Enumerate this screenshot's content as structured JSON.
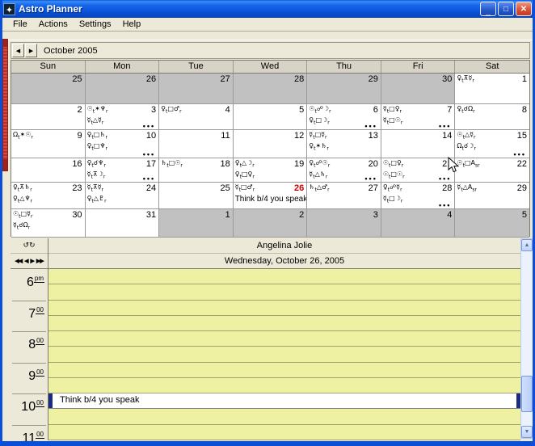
{
  "window": {
    "title": "Astro Planner",
    "icon": "✦",
    "minimize": "_",
    "maximize": "□",
    "close": "✕"
  },
  "menu": [
    "File",
    "Actions",
    "Settings",
    "Help"
  ],
  "navbar": {
    "prev": "◀",
    "next": "▶",
    "label": "October 2005"
  },
  "calendar": {
    "headers": [
      "Sun",
      "Mon",
      "Tue",
      "Wed",
      "Thu",
      "Fri",
      "Sat"
    ],
    "more_label": "•••",
    "weeks": [
      [
        {
          "day": "25",
          "dim": 1
        },
        {
          "day": "26",
          "dim": 1
        },
        {
          "day": "27",
          "dim": 1
        },
        {
          "day": "28",
          "dim": 1
        },
        {
          "day": "29",
          "dim": 1
        },
        {
          "day": "30",
          "dim": 1
        },
        {
          "day": "1",
          "lines": [
            "♀t⊼☿r"
          ]
        }
      ],
      [
        {
          "day": "2"
        },
        {
          "day": "3",
          "lines": [
            "☉t✶♆r",
            "☿t△☿r"
          ],
          "more": 1
        },
        {
          "day": "4",
          "lines": [
            "♀t□♂r"
          ]
        },
        {
          "day": "5"
        },
        {
          "day": "6",
          "lines": [
            "☉t☍☽r",
            "♀t□☽r"
          ],
          "more": 1
        },
        {
          "day": "7",
          "lines": [
            "☿t□♀r",
            "☿t□☉r"
          ],
          "more": 1
        },
        {
          "day": "8",
          "lines": [
            "♀t☌Ωr"
          ]
        }
      ],
      [
        {
          "day": "9",
          "lines": [
            "Ωt✶☉r"
          ]
        },
        {
          "day": "10",
          "lines": [
            "♀t□♄r",
            "♀t□♆r"
          ],
          "more": 1
        },
        {
          "day": "11"
        },
        {
          "day": "12"
        },
        {
          "day": "13",
          "lines": [
            "☿t□☿r",
            "♀t✶♄r"
          ]
        },
        {
          "day": "14"
        },
        {
          "day": "15",
          "lines": [
            "☉t△☿r",
            "Ωt☌☽r"
          ],
          "more": 1
        }
      ],
      [
        {
          "day": "16"
        },
        {
          "day": "17",
          "lines": [
            "♀t☌♆r",
            "☿t⊼☽r"
          ],
          "more": 1
        },
        {
          "day": "18",
          "lines": [
            "♄t□☉r"
          ]
        },
        {
          "day": "19",
          "lines": [
            "♀t△☽r",
            "♀t□♀r"
          ]
        },
        {
          "day": "20",
          "lines": [
            "♀t☍☉r",
            "☿t△♄r"
          ],
          "more": 1
        },
        {
          "day": "21",
          "lines": [
            "☉t□♀r",
            "☉t□☉r"
          ],
          "more": 1
        },
        {
          "day": "22",
          "lines": [
            "☉t□Asr"
          ]
        }
      ],
      [
        {
          "day": "23",
          "lines": [
            "♀t⊼♄r",
            "♀t△♆r"
          ]
        },
        {
          "day": "24",
          "lines": [
            "☿t⊼☿r",
            "♀t△♇r"
          ]
        },
        {
          "day": "25"
        },
        {
          "day": "26",
          "red": 1,
          "lines": [
            "☿t□♂r"
          ],
          "note": "Think b/4 you speak"
        },
        {
          "day": "27",
          "lines": [
            "♄t△♂r"
          ]
        },
        {
          "day": "28",
          "lines": [
            "♀t☍☿r",
            "☿t□☽r"
          ],
          "more": 1
        },
        {
          "day": "29",
          "lines": [
            "☿t△Asr"
          ]
        }
      ],
      [
        {
          "day": "30",
          "lines": [
            "☉t□☿r",
            "☿t☌Ωr"
          ]
        },
        {
          "day": "31"
        },
        {
          "day": "1",
          "dim": 1
        },
        {
          "day": "2",
          "dim": 1
        },
        {
          "day": "3",
          "dim": 1
        },
        {
          "day": "4",
          "dim": 1
        },
        {
          "day": "5",
          "dim": 1
        }
      ]
    ]
  },
  "planner": {
    "person": "Angelina Jolie",
    "date": "Wednesday, October 26, 2005",
    "history_icon": "↺↻",
    "nav": [
      "◀◀",
      "◀",
      "▶",
      "▶▶"
    ],
    "hours": [
      {
        "h": "6",
        "m": "pm"
      },
      {
        "h": "7",
        "m": "00"
      },
      {
        "h": "8",
        "m": "00"
      },
      {
        "h": "9",
        "m": "00"
      },
      {
        "h": "10",
        "m": "00"
      },
      {
        "h": "11",
        "m": "00"
      }
    ],
    "slots": 11,
    "event": {
      "slot": 8,
      "time": "10:00",
      "text": "Think b/4 you speak"
    }
  },
  "scrollbar": {
    "up": "▲",
    "down": "▼"
  },
  "colors": {
    "titlebar_blue": "#0a55e0",
    "dim_gray": "#c1c1c1",
    "slot_yellow": "#eef0a2",
    "event_bar_navy": "#1b2d83",
    "red_strip": "#b2322c",
    "today_red": "#cc0000"
  }
}
